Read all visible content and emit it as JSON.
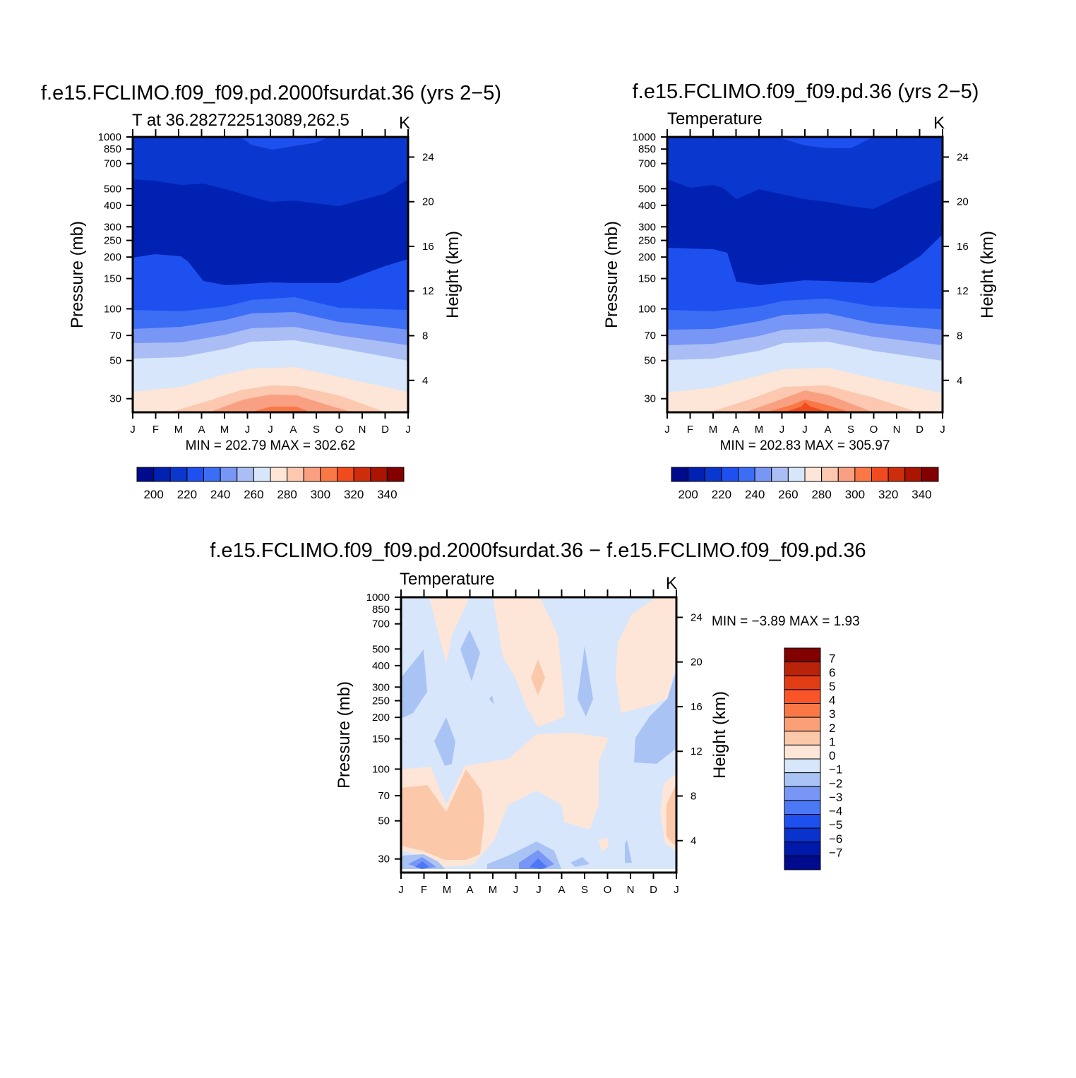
{
  "figure": {
    "panels": [
      {
        "title": "f.e15.FCLIMO.f09_f09.pd.2000fsurdat.36 (yrs 2−5)",
        "subtitle": "T at 36.282722513089,262.5",
        "units": "K",
        "minmax": "MIN =  202.79  MAX =  302.62"
      },
      {
        "title": "f.e15.FCLIMO.f09_f09.pd.36 (yrs 2−5)",
        "subtitle": "Temperature",
        "units": "K",
        "minmax": "MIN =  202.83  MAX =  305.97"
      },
      {
        "title": "f.e15.FCLIMO.f09_f09.pd.2000fsurdat.36 − f.e15.FCLIMO.f09_f09.pd.36",
        "subtitle": "Temperature",
        "units": "K",
        "minmax": "MIN =   −3.89  MAX =     1.93"
      }
    ]
  },
  "chart_data": [
    {
      "type": "contour",
      "title": "f.e15.FCLIMO.f09_f09.pd.2000fsurdat.36 (yrs 2−5)",
      "subtitle": "T at 36.282722513089,262.5",
      "units": "K",
      "xlabel": "",
      "ylabel": "Pressure (mb)",
      "ylabel_right": "Height (km)",
      "x_ticks": [
        "J",
        "F",
        "M",
        "A",
        "M",
        "J",
        "J",
        "A",
        "S",
        "O",
        "N",
        "D",
        "J"
      ],
      "y_ticks": [
        "30",
        "50",
        "70",
        "100",
        "150",
        "200",
        "250",
        "300",
        "400",
        "500",
        "700",
        "850",
        "1000"
      ],
      "y_ticks_right": [
        "24",
        "20",
        "16",
        "12",
        "8",
        "4"
      ],
      "ylim": [
        1000,
        25
      ],
      "min": 202.79,
      "max": 302.62,
      "colorbar_labels": [
        "200",
        "220",
        "240",
        "260",
        "280",
        "300",
        "320",
        "340"
      ],
      "colorbar_levels": [
        200,
        210,
        220,
        230,
        240,
        250,
        260,
        270,
        280,
        290,
        300,
        310,
        320,
        330,
        340
      ]
    },
    {
      "type": "contour",
      "title": "f.e15.FCLIMO.f09_f09.pd.36 (yrs 2−5)",
      "subtitle": "Temperature",
      "units": "K",
      "xlabel": "",
      "ylabel": "Pressure (mb)",
      "ylabel_right": "Height (km)",
      "x_ticks": [
        "J",
        "F",
        "M",
        "A",
        "M",
        "J",
        "J",
        "A",
        "S",
        "O",
        "N",
        "D",
        "J"
      ],
      "y_ticks": [
        "30",
        "50",
        "70",
        "100",
        "150",
        "200",
        "250",
        "300",
        "400",
        "500",
        "700",
        "850",
        "1000"
      ],
      "y_ticks_right": [
        "24",
        "20",
        "16",
        "12",
        "8",
        "4"
      ],
      "ylim": [
        1000,
        25
      ],
      "min": 202.83,
      "max": 305.97,
      "colorbar_labels": [
        "200",
        "220",
        "240",
        "260",
        "280",
        "300",
        "320",
        "340"
      ],
      "colorbar_levels": [
        200,
        210,
        220,
        230,
        240,
        250,
        260,
        270,
        280,
        290,
        300,
        310,
        320,
        330,
        340
      ]
    },
    {
      "type": "contour",
      "title": "f.e15.FCLIMO.f09_f09.pd.2000fsurdat.36 − f.e15.FCLIMO.f09_f09.pd.36",
      "subtitle": "Temperature",
      "units": "K",
      "xlabel": "",
      "ylabel": "Pressure (mb)",
      "ylabel_right": "Height (km)",
      "x_ticks": [
        "J",
        "F",
        "M",
        "A",
        "M",
        "J",
        "J",
        "A",
        "S",
        "O",
        "N",
        "D",
        "J"
      ],
      "y_ticks": [
        "30",
        "50",
        "70",
        "100",
        "150",
        "200",
        "250",
        "300",
        "400",
        "500",
        "700",
        "850",
        "1000"
      ],
      "y_ticks_right": [
        "24",
        "20",
        "16",
        "12",
        "8",
        "4"
      ],
      "ylim": [
        1000,
        25
      ],
      "min": -3.89,
      "max": 1.93,
      "colorbar_labels": [
        "7",
        "6",
        "5",
        "4",
        "3",
        "2",
        "1",
        "0",
        "−1",
        "−2",
        "−3",
        "−4",
        "−5",
        "−6",
        "−7"
      ]
    }
  ],
  "colors": {
    "abs_scale": [
      "#000a8c",
      "#0021b2",
      "#0a37cd",
      "#1e50f0",
      "#3c6ef5",
      "#7896f5",
      "#aabef5",
      "#d7e6fa",
      "#fde6d7",
      "#fcc8af",
      "#f9a082",
      "#f97846",
      "#f04b1e",
      "#cd2d0a",
      "#aa1400",
      "#820000"
    ],
    "diff_scale": [
      "#820000",
      "#b9230a",
      "#e13c14",
      "#fa5528",
      "#fa7846",
      "#faa078",
      "#fcc8aa",
      "#fde6d7",
      "#d7e6fa",
      "#aac3f5",
      "#7896f5",
      "#4b78f5",
      "#1e50f0",
      "#0a32cd",
      "#0019aa",
      "#000a8c"
    ]
  }
}
